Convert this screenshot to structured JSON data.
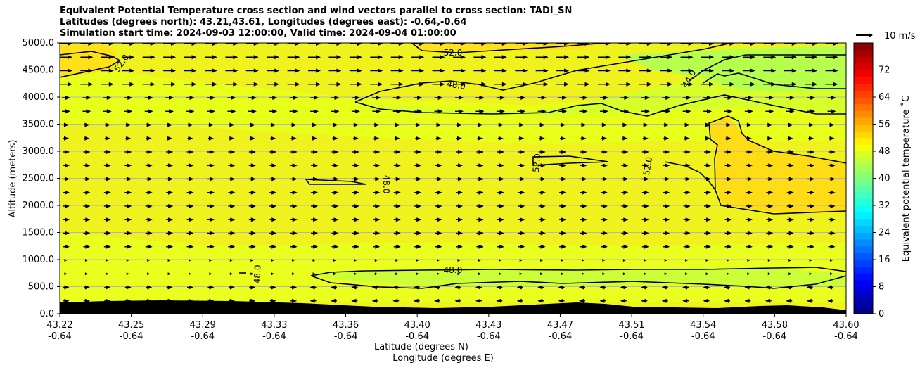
{
  "chart_data": {
    "type": "contour cross-section with wind vectors",
    "title_lines": [
      "Equivalent Potential Temperature cross section and wind vectors parallel to cross section: TADI_SN",
      "Latitudes (degrees north): 43.21,43.61, Longitudes (degrees east): -0.64,-0.64",
      "Simulation start time: 2024-09-03 12:00:00, Valid time: 2024-09-04 01:00:00"
    ],
    "ylabel": "Altitude (meters)",
    "xlabel_line1": "Latitude (degrees N)",
    "xlabel_line2": "Longitude (degrees E)",
    "ylim": [
      0,
      5000
    ],
    "yticks": [
      "0.0",
      "500.0",
      "1000.0",
      "1500.0",
      "2000.0",
      "2500.0",
      "3000.0",
      "3500.0",
      "4000.0",
      "4500.0",
      "5000.0"
    ],
    "xlim": [
      43.22,
      43.6
    ],
    "xticks_lat": [
      "43.22",
      "43.25",
      "43.29",
      "43.33",
      "43.36",
      "43.40",
      "43.43",
      "43.47",
      "43.51",
      "43.54",
      "43.58",
      "43.60"
    ],
    "xticks_lon": [
      "-0.64",
      "-0.64",
      "-0.64",
      "-0.64",
      "-0.64",
      "-0.64",
      "-0.64",
      "-0.64",
      "-0.64",
      "-0.64",
      "-0.64",
      "-0.64"
    ],
    "grid": "horizontal",
    "colorbar": {
      "label": "Equivalent potential temperature ˚C",
      "range": [
        0,
        80
      ],
      "ticks": [
        "0",
        "8",
        "16",
        "24",
        "32",
        "40",
        "48",
        "56",
        "64",
        "72"
      ],
      "colormap": "jet"
    },
    "contour_labels": [
      "52.0",
      "52.0",
      "48.0",
      "44.0",
      "52.0",
      "52.0",
      "48.0",
      "48.0",
      "48.0"
    ],
    "wind_key": "10 m/s",
    "terrain_color": "#000000"
  }
}
